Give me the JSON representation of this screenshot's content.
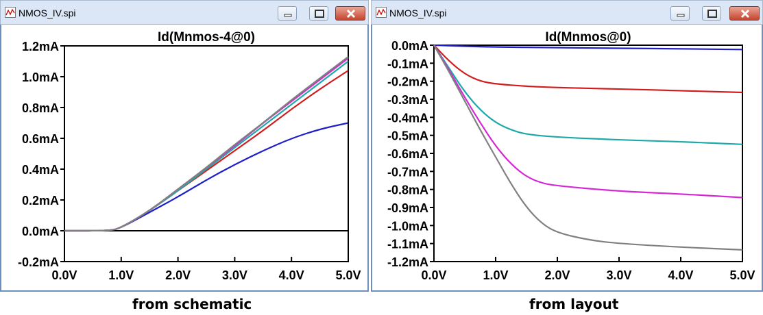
{
  "left_window": {
    "title": "NMOS_IV.spi",
    "caption": "from schematic",
    "chart_data": {
      "type": "line",
      "title": "Id(Mnmos-4@0)",
      "xlabel": "",
      "ylabel": "",
      "xlim": [
        0,
        5
      ],
      "ylim": [
        -0.2,
        1.2
      ],
      "x_ticks": [
        "0.0V",
        "1.0V",
        "2.0V",
        "3.0V",
        "4.0V",
        "5.0V"
      ],
      "y_ticks": [
        "1.2mA",
        "1.0mA",
        "0.8mA",
        "0.6mA",
        "0.4mA",
        "0.2mA",
        "0.0mA",
        "-0.2mA"
      ],
      "grid": false,
      "series": [
        {
          "color": "#1f1fc8",
          "points": [
            [
              0,
              0
            ],
            [
              0.8,
              0
            ],
            [
              1.0,
              0.02
            ],
            [
              1.5,
              0.12
            ],
            [
              2.0,
              0.22
            ],
            [
              2.5,
              0.33
            ],
            [
              3.0,
              0.43
            ],
            [
              3.5,
              0.52
            ],
            [
              4.0,
              0.6
            ],
            [
              4.5,
              0.66
            ],
            [
              5.0,
              0.7
            ]
          ]
        },
        {
          "color": "#d01c1c",
          "points": [
            [
              0,
              0
            ],
            [
              0.8,
              0
            ],
            [
              1.0,
              0.02
            ],
            [
              1.5,
              0.13
            ],
            [
              2.0,
              0.26
            ],
            [
              2.5,
              0.39
            ],
            [
              3.0,
              0.52
            ],
            [
              3.5,
              0.65
            ],
            [
              4.0,
              0.79
            ],
            [
              4.5,
              0.92
            ],
            [
              5.0,
              1.04
            ]
          ]
        },
        {
          "color": "#1fa8a8",
          "points": [
            [
              0,
              0
            ],
            [
              0.8,
              0
            ],
            [
              1.0,
              0.02
            ],
            [
              1.5,
              0.13
            ],
            [
              2.0,
              0.26
            ],
            [
              2.5,
              0.4
            ],
            [
              3.0,
              0.54
            ],
            [
              3.5,
              0.68
            ],
            [
              4.0,
              0.82
            ],
            [
              4.5,
              0.96
            ],
            [
              5.0,
              1.1
            ]
          ]
        },
        {
          "color": "#d42ad4",
          "points": [
            [
              0,
              0
            ],
            [
              0.8,
              0
            ],
            [
              1.0,
              0.02
            ],
            [
              1.5,
              0.13
            ],
            [
              2.0,
              0.27
            ],
            [
              2.5,
              0.41
            ],
            [
              3.0,
              0.55
            ],
            [
              3.5,
              0.7
            ],
            [
              4.0,
              0.84
            ],
            [
              4.5,
              0.98
            ],
            [
              5.0,
              1.12
            ]
          ]
        },
        {
          "color": "#808080",
          "points": [
            [
              0,
              0
            ],
            [
              0.8,
              0
            ],
            [
              1.0,
              0.02
            ],
            [
              1.5,
              0.13
            ],
            [
              2.0,
              0.27
            ],
            [
              2.5,
              0.41
            ],
            [
              3.0,
              0.56
            ],
            [
              3.5,
              0.7
            ],
            [
              4.0,
              0.85
            ],
            [
              4.5,
              0.99
            ],
            [
              5.0,
              1.13
            ]
          ]
        }
      ]
    }
  },
  "right_window": {
    "title": "NMOS_IV.spi",
    "caption": "from layout",
    "chart_data": {
      "type": "line",
      "title": "Id(Mnmos@0)",
      "xlabel": "",
      "ylabel": "",
      "xlim": [
        0,
        5
      ],
      "ylim": [
        -1.2,
        0
      ],
      "x_ticks": [
        "0.0V",
        "1.0V",
        "2.0V",
        "3.0V",
        "4.0V",
        "5.0V"
      ],
      "y_ticks": [
        "0.0mA",
        "-0.1mA",
        "-0.2mA",
        "-0.3mA",
        "-0.4mA",
        "-0.5mA",
        "-0.6mA",
        "-0.7mA",
        "-0.8mA",
        "-0.9mA",
        "-1.0mA",
        "-1.1mA",
        "-1.2mA"
      ],
      "grid": false,
      "series": [
        {
          "color": "#1f1fc8",
          "points": [
            [
              0,
              0
            ],
            [
              0.5,
              -0.006
            ],
            [
              1.0,
              -0.01
            ],
            [
              2.0,
              -0.014
            ],
            [
              3.0,
              -0.017
            ],
            [
              4.0,
              -0.02
            ],
            [
              5.0,
              -0.024
            ]
          ]
        },
        {
          "color": "#d01c1c",
          "points": [
            [
              0,
              0
            ],
            [
              0.25,
              -0.09
            ],
            [
              0.5,
              -0.16
            ],
            [
              0.75,
              -0.2
            ],
            [
              1.0,
              -0.215
            ],
            [
              1.5,
              -0.228
            ],
            [
              2.0,
              -0.235
            ],
            [
              3.0,
              -0.243
            ],
            [
              4.0,
              -0.252
            ],
            [
              5.0,
              -0.262
            ]
          ]
        },
        {
          "color": "#1fa8a8",
          "points": [
            [
              0,
              0
            ],
            [
              0.25,
              -0.13
            ],
            [
              0.5,
              -0.26
            ],
            [
              0.75,
              -0.36
            ],
            [
              1.0,
              -0.43
            ],
            [
              1.25,
              -0.47
            ],
            [
              1.5,
              -0.495
            ],
            [
              2.0,
              -0.51
            ],
            [
              3.0,
              -0.525
            ],
            [
              4.0,
              -0.535
            ],
            [
              5.0,
              -0.55
            ]
          ]
        },
        {
          "color": "#d42ad4",
          "points": [
            [
              0,
              0
            ],
            [
              0.25,
              -0.14
            ],
            [
              0.5,
              -0.29
            ],
            [
              0.75,
              -0.43
            ],
            [
              1.0,
              -0.56
            ],
            [
              1.25,
              -0.66
            ],
            [
              1.5,
              -0.73
            ],
            [
              1.75,
              -0.765
            ],
            [
              2.0,
              -0.78
            ],
            [
              3.0,
              -0.81
            ],
            [
              4.0,
              -0.825
            ],
            [
              5.0,
              -0.845
            ]
          ]
        },
        {
          "color": "#808080",
          "points": [
            [
              0,
              0
            ],
            [
              0.25,
              -0.15
            ],
            [
              0.5,
              -0.31
            ],
            [
              0.75,
              -0.47
            ],
            [
              1.0,
              -0.62
            ],
            [
              1.25,
              -0.77
            ],
            [
              1.5,
              -0.9
            ],
            [
              1.75,
              -0.99
            ],
            [
              2.0,
              -1.04
            ],
            [
              2.5,
              -1.08
            ],
            [
              3.0,
              -1.1
            ],
            [
              4.0,
              -1.12
            ],
            [
              5.0,
              -1.135
            ]
          ]
        }
      ]
    }
  },
  "icons": {
    "app": "ltspice-waveform-icon",
    "minimize": "minimize-icon",
    "maximize": "maximize-icon",
    "close": "close-icon"
  }
}
